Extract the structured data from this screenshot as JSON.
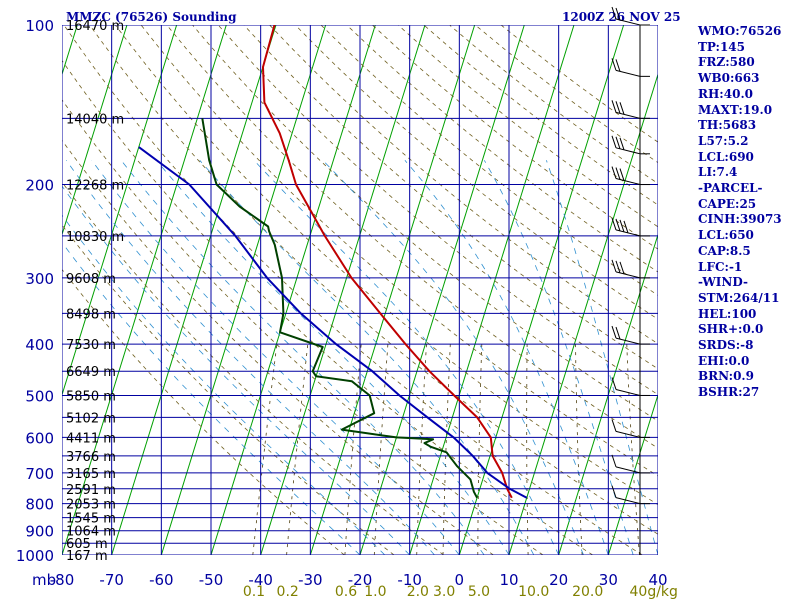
{
  "title_left": "MMZC (76526) Sounding",
  "title_right": "1200Z 26 NOV 25",
  "pressure_unit": "mb",
  "indices": [
    "WMO:76526",
    "TP:145",
    "FRZ:580",
    "WB0:663",
    "RH:40.0",
    "MAXT:19.0",
    "TH:5683",
    "L57:5.2",
    "LCL:690",
    "LI:7.4",
    "-PARCEL-",
    "CAPE:25",
    "CINH:39073",
    "LCL:650",
    "CAP:8.5",
    "LFC:-1",
    "-WIND-",
    "STM:264/11",
    "HEL:100",
    "SHR+:0.0",
    "SRDS:-8",
    "EHI:0.0",
    "BRN:0.9",
    "BSHR:27"
  ],
  "chart_data": {
    "type": "skew-t",
    "pressure_levels": [
      100,
      200,
      300,
      400,
      500,
      600,
      700,
      800,
      900,
      1000
    ],
    "temperature_ticks": [
      "-80",
      "-70",
      "-60",
      "-50",
      "-40",
      "-30",
      "-20",
      "-10",
      "0",
      "10",
      "20",
      "30",
      "40"
    ],
    "x_range_celsius": [
      -80,
      40
    ],
    "y_range_mb": [
      100,
      1000
    ],
    "height_labels": [
      {
        "p": 100,
        "text": "16470 m"
      },
      {
        "p": 150,
        "text": "14040 m"
      },
      {
        "p": 200,
        "text": "12268 m"
      },
      {
        "p": 250,
        "text": "10830 m"
      },
      {
        "p": 300,
        "text": "9608 m"
      },
      {
        "p": 350,
        "text": "8498 m"
      },
      {
        "p": 400,
        "text": "7530 m"
      },
      {
        "p": 450,
        "text": "6649 m"
      },
      {
        "p": 500,
        "text": "5850 m"
      },
      {
        "p": 550,
        "text": "5102 m"
      },
      {
        "p": 600,
        "text": "4411 m"
      },
      {
        "p": 650,
        "text": "3766 m"
      },
      {
        "p": 700,
        "text": "3165 m"
      },
      {
        "p": 750,
        "text": "2591 m"
      },
      {
        "p": 800,
        "text": "2053 m"
      },
      {
        "p": 850,
        "text": "1545 m"
      },
      {
        "p": 900,
        "text": "1064 m"
      },
      {
        "p": 950,
        "text": "605 m"
      },
      {
        "p": 1000,
        "text": "167 m"
      }
    ],
    "mixing_ratio_labels": [
      "0.1",
      "0.2",
      "0.6",
      "1.0",
      "2.0",
      "3.0",
      "5.0",
      "10.0",
      "20.0",
      "40g/kg"
    ],
    "series": [
      {
        "name": "temperature",
        "color": "#c00000",
        "points": [
          [
            100,
            -70.3
          ],
          [
            120,
            -70.0
          ],
          [
            140,
            -67.5
          ],
          [
            160,
            -62.5
          ],
          [
            180,
            -59.0
          ],
          [
            200,
            -56.0
          ],
          [
            250,
            -47.0
          ],
          [
            300,
            -39.0
          ],
          [
            350,
            -31.0
          ],
          [
            400,
            -24.0
          ],
          [
            450,
            -17.5
          ],
          [
            500,
            -11.0
          ],
          [
            550,
            -5.0
          ],
          [
            600,
            -1.0
          ],
          [
            650,
            0.5
          ],
          [
            700,
            3.5
          ],
          [
            750,
            5.5
          ],
          [
            780,
            7.0
          ]
        ]
      },
      {
        "name": "dewpoint",
        "color": "#004000",
        "points": [
          [
            150,
            -79.0
          ],
          [
            180,
            -75.0
          ],
          [
            200,
            -72.0
          ],
          [
            220,
            -66.0
          ],
          [
            240,
            -59.0
          ],
          [
            245,
            -58.5
          ],
          [
            260,
            -56.5
          ],
          [
            300,
            -53.0
          ],
          [
            350,
            -50.5
          ],
          [
            380,
            -50.0
          ],
          [
            405,
            -40.5
          ],
          [
            450,
            -41.0
          ],
          [
            460,
            -40.0
          ],
          [
            470,
            -32.5
          ],
          [
            500,
            -28.0
          ],
          [
            540,
            -26.0
          ],
          [
            580,
            -31.5
          ],
          [
            600,
            -20.0
          ],
          [
            605,
            -12.5
          ],
          [
            615,
            -14.0
          ],
          [
            625,
            -12.5
          ],
          [
            640,
            -9.0
          ],
          [
            680,
            -6.0
          ],
          [
            720,
            -2.5
          ],
          [
            760,
            -1.0
          ],
          [
            780,
            0.0
          ]
        ]
      },
      {
        "name": "parcel",
        "color": "#0000b0",
        "points": [
          [
            170,
            -90.0
          ],
          [
            200,
            -77.5
          ],
          [
            250,
            -65.0
          ],
          [
            300,
            -56.0
          ],
          [
            350,
            -47.0
          ],
          [
            400,
            -38.0
          ],
          [
            450,
            -29.0
          ],
          [
            500,
            -22.0
          ],
          [
            550,
            -15.0
          ],
          [
            600,
            -8.5
          ],
          [
            650,
            -3.5
          ],
          [
            700,
            0.5
          ],
          [
            750,
            6.0
          ],
          [
            780,
            10.0
          ]
        ]
      }
    ],
    "wind_barbs": [
      {
        "p": 100,
        "dir": 300,
        "spd": 15
      },
      {
        "p": 125,
        "dir": 290,
        "spd": 20
      },
      {
        "p": 150,
        "dir": 280,
        "spd": 25
      },
      {
        "p": 175,
        "dir": 275,
        "spd": 25
      },
      {
        "p": 200,
        "dir": 270,
        "spd": 30
      },
      {
        "p": 250,
        "dir": 270,
        "spd": 35
      },
      {
        "p": 300,
        "dir": 265,
        "spd": 25
      },
      {
        "p": 400,
        "dir": 260,
        "spd": 15
      },
      {
        "p": 500,
        "dir": 250,
        "spd": 10
      },
      {
        "p": 600,
        "dir": 240,
        "spd": 10
      },
      {
        "p": 700,
        "dir": 230,
        "spd": 10
      },
      {
        "p": 800,
        "dir": 220,
        "spd": 5
      }
    ]
  }
}
